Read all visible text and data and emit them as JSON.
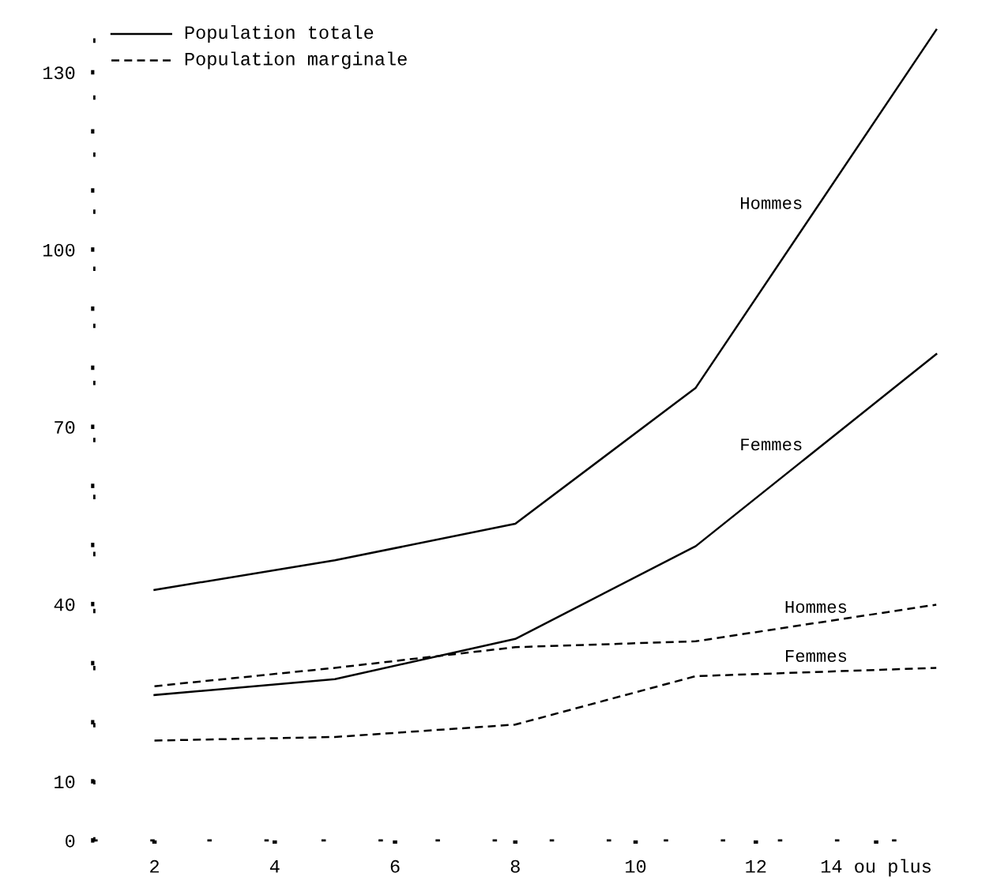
{
  "chart_data": {
    "type": "line",
    "x": [
      2,
      5,
      8,
      11,
      15
    ],
    "series": [
      {
        "name": "Hommes",
        "color": "#000000",
        "line_style": "solid",
        "values": [
          42.4,
          47.4,
          53.6,
          76.6,
          137.2
        ]
      },
      {
        "name": "Femmes",
        "color": "#000000",
        "line_style": "solid",
        "values": [
          24.6,
          27.3,
          34.1,
          49.8,
          82.3
        ]
      },
      {
        "name": "Hommes",
        "color": "#000000",
        "line_style": "dashed",
        "values": [
          26.1,
          29.2,
          32.7,
          33.7,
          39.9
        ]
      },
      {
        "name": "Femmes",
        "color": "#000000",
        "line_style": "dashed",
        "values": [
          16.9,
          17.5,
          19.6,
          27.8,
          29.2
        ]
      }
    ],
    "xlim": [
      1,
      15.2
    ],
    "ylim": [
      0,
      140
    ],
    "xticks": [
      2,
      4,
      6,
      8,
      10,
      12,
      {
        "value": 14,
        "label": "14 ou plus"
      }
    ],
    "yticks": [
      0,
      10,
      {
        "value": 20,
        "label": null
      },
      {
        "value": 30,
        "label": null
      },
      40,
      {
        "value": 50,
        "label": null
      },
      {
        "value": 60,
        "label": null
      },
      70,
      {
        "value": 80,
        "label": null
      },
      {
        "value": 90,
        "label": null
      },
      100,
      {
        "value": 110,
        "label": null
      },
      {
        "value": 120,
        "label": null
      },
      130
    ],
    "grid": false,
    "annotations": [
      "Population totale",
      "Population marginale"
    ]
  }
}
